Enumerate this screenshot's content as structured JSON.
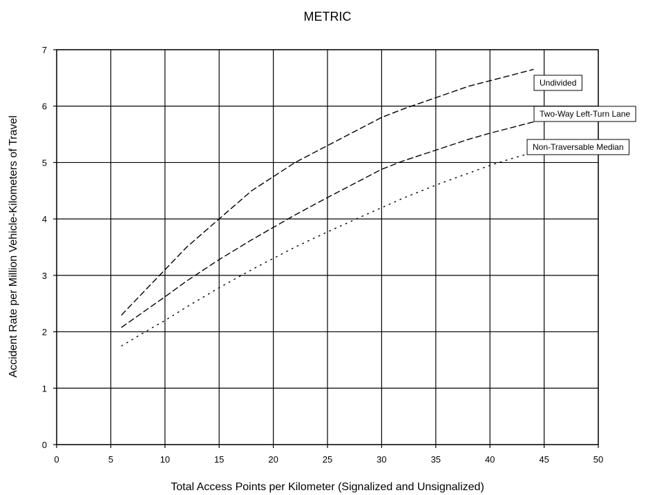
{
  "chart_data": {
    "type": "line",
    "title": "METRIC",
    "xlabel": "Total Access Points per Kilometer (Signalized and Unsignalized)",
    "ylabel": "Accident Rate per Million Vehicle-Kilometers of Travel",
    "xlim": [
      0,
      50
    ],
    "ylim": [
      0,
      7
    ],
    "x_ticks": [
      "0",
      "5",
      "10",
      "15",
      "20",
      "25",
      "30",
      "35",
      "40",
      "45",
      "50"
    ],
    "y_ticks": [
      "0",
      "1",
      "2",
      "3",
      "4",
      "5",
      "6",
      "7"
    ],
    "grid": true,
    "series": [
      {
        "name": "Undivided",
        "line_style": "dashed",
        "x": [
          6,
          8,
          10,
          12,
          15,
          18,
          20,
          22,
          25,
          28,
          30,
          32,
          35,
          38,
          40,
          42,
          44
        ],
        "y": [
          2.3,
          2.7,
          3.1,
          3.5,
          4.0,
          4.5,
          4.75,
          5.0,
          5.3,
          5.6,
          5.8,
          5.95,
          6.15,
          6.35,
          6.45,
          6.55,
          6.65
        ]
      },
      {
        "name": "Two-Way Left-Turn Lane",
        "line_style": "dashed",
        "x": [
          6,
          8,
          10,
          12,
          15,
          18,
          20,
          22,
          25,
          28,
          30,
          32,
          35,
          38,
          40,
          42,
          44,
          46
        ],
        "y": [
          2.08,
          2.35,
          2.62,
          2.9,
          3.28,
          3.63,
          3.85,
          4.07,
          4.38,
          4.68,
          4.88,
          5.03,
          5.22,
          5.41,
          5.52,
          5.62,
          5.72,
          5.8
        ]
      },
      {
        "name": "Non-Traversable Median",
        "line_style": "dotted",
        "x": [
          6,
          8,
          10,
          12,
          15,
          18,
          20,
          22,
          25,
          28,
          30,
          32,
          35,
          38,
          40,
          42,
          44,
          45
        ],
        "y": [
          1.75,
          1.98,
          2.2,
          2.44,
          2.78,
          3.1,
          3.3,
          3.5,
          3.77,
          4.03,
          4.2,
          4.37,
          4.6,
          4.81,
          4.95,
          5.07,
          5.18,
          5.23
        ]
      }
    ]
  }
}
